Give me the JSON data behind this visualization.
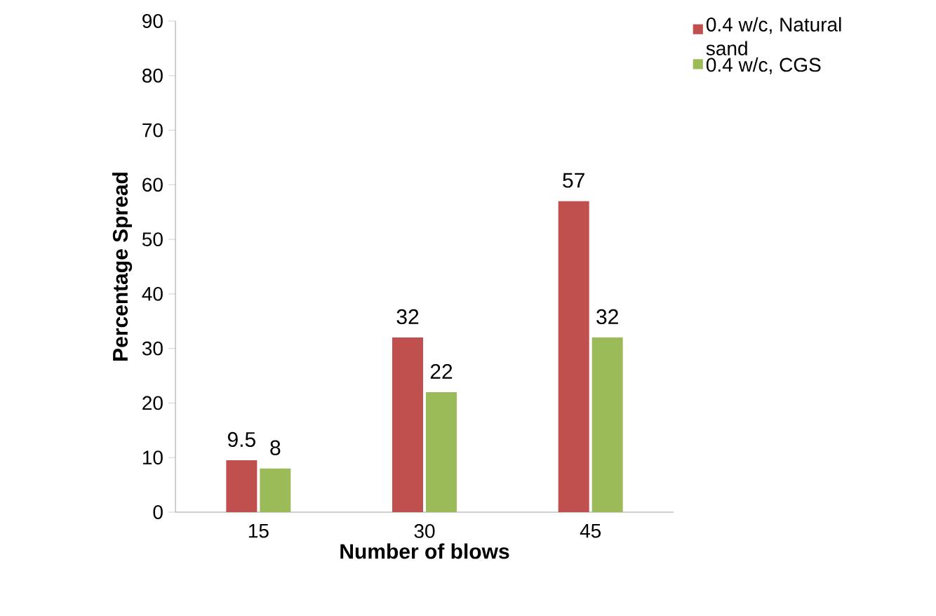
{
  "chart_data": {
    "type": "bar",
    "xlabel": "Number of blows",
    "ylabel": "Percentage Spread",
    "categories": [
      "15",
      "30",
      "45"
    ],
    "series": [
      {
        "name": "0.4 w/c, Natural sand",
        "color": "#c0504d",
        "values": [
          9.5,
          32,
          57
        ]
      },
      {
        "name": "0.4 w/c, CGS",
        "color": "#9bbb59",
        "values": [
          8,
          22,
          32
        ]
      }
    ],
    "ylim": [
      0,
      90
    ],
    "yticks": [
      0,
      10,
      20,
      30,
      40,
      50,
      60,
      70,
      80,
      90
    ],
    "data_labels": true,
    "legend": "top right",
    "grid": false
  }
}
